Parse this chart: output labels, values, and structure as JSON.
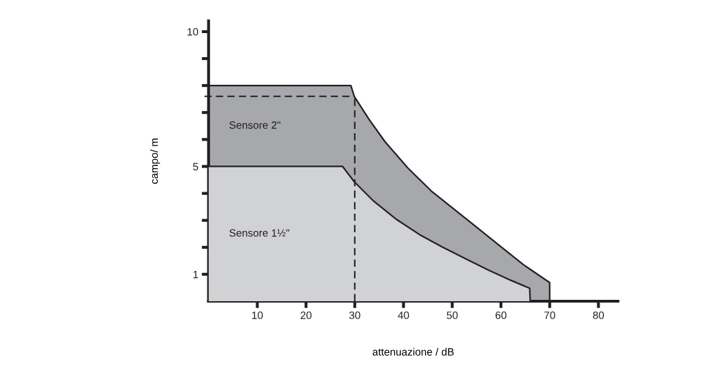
{
  "chart_data": {
    "type": "area",
    "xlabel": "attenuazione / dB",
    "ylabel": "campo/ m",
    "xlim": [
      0,
      84
    ],
    "ylim": [
      0,
      10.4
    ],
    "xticks": [
      10,
      20,
      30,
      40,
      50,
      60,
      70,
      80
    ],
    "yticks": [
      {
        "value": 1,
        "label": "1"
      },
      {
        "value": 2,
        "label": null
      },
      {
        "value": 3,
        "label": null
      },
      {
        "value": 4,
        "label": null
      },
      {
        "value": 5,
        "label": "5"
      },
      {
        "value": 6,
        "label": null
      },
      {
        "value": 7,
        "label": null
      },
      {
        "value": 8,
        "label": null
      },
      {
        "value": 9,
        "label": null
      },
      {
        "value": 10,
        "label": "10"
      }
    ],
    "grid": false,
    "legend": false,
    "series": [
      {
        "name": "Sensore 2\"",
        "color": "#a7a8ab",
        "x": [
          0,
          29.2,
          29.9,
          33.0,
          36.2,
          40.9,
          45.7,
          50.4,
          55.1,
          59.8,
          64.5,
          70.0,
          70.0
        ],
        "values": [
          8.0,
          8.0,
          7.6,
          6.73,
          5.92,
          4.94,
          4.09,
          3.41,
          2.73,
          2.05,
          1.37,
          0.69,
          0
        ]
      },
      {
        "name": "Sensore 1½\"",
        "color": "#d1d2d4",
        "x": [
          0,
          27.5,
          29.9,
          33.9,
          38.6,
          43.3,
          48.0,
          52.7,
          57.4,
          62.1,
          65.9,
          66.0
        ],
        "values": [
          5.0,
          5.0,
          4.43,
          3.71,
          3.03,
          2.47,
          2.01,
          1.58,
          1.16,
          0.77,
          0.48,
          0
        ]
      }
    ],
    "ref_lines": [
      {
        "axis": "x",
        "value": 30,
        "line_style": "dashed"
      },
      {
        "axis": "y",
        "value": 7.6,
        "line_style": "dashed"
      }
    ]
  }
}
